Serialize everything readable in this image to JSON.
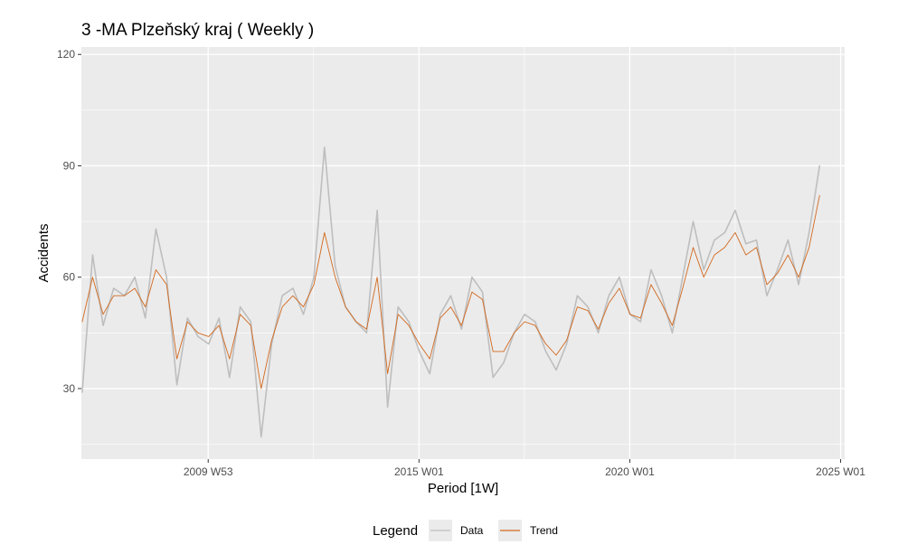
{
  "chart_data": {
    "type": "line",
    "title": "3 -MA   Plzeňský kraj ( Weekly )",
    "xlabel": "Period [1W]",
    "ylabel": "Accidents",
    "x_ticks": [
      {
        "label": "2009 W53",
        "date": "2009-12-28"
      },
      {
        "label": "2015 W01",
        "date": "2014-12-29"
      },
      {
        "label": "2020 W01",
        "date": "2019-12-30"
      },
      {
        "label": "2025 W01",
        "date": "2024-12-30"
      }
    ],
    "y_ticks": [
      30,
      60,
      90,
      120
    ],
    "xlim": [
      "2006-12-25",
      "2025-02-03"
    ],
    "ylim": [
      11,
      122
    ],
    "grid": true,
    "legend": {
      "title": "Legend",
      "position": "bottom",
      "entries": [
        {
          "name": "Data",
          "color": "#bebebe"
        },
        {
          "name": "Trend",
          "color": "#d2691e"
        }
      ]
    },
    "series": [
      {
        "name": "Data",
        "color": "#bebebe",
        "x": [
          "2007-01",
          "2007-04",
          "2007-07",
          "2007-10",
          "2008-01",
          "2008-04",
          "2008-07",
          "2008-10",
          "2009-01",
          "2009-04",
          "2009-07",
          "2009-10",
          "2010-01",
          "2010-04",
          "2010-07",
          "2010-10",
          "2011-01",
          "2011-04",
          "2011-07",
          "2011-10",
          "2012-01",
          "2012-04",
          "2012-07",
          "2012-10",
          "2013-01",
          "2013-04",
          "2013-07",
          "2013-10",
          "2014-01",
          "2014-04",
          "2014-07",
          "2014-10",
          "2015-01",
          "2015-04",
          "2015-07",
          "2015-10",
          "2016-01",
          "2016-04",
          "2016-07",
          "2016-10",
          "2017-01",
          "2017-04",
          "2017-07",
          "2017-10",
          "2018-01",
          "2018-04",
          "2018-07",
          "2018-10",
          "2019-01",
          "2019-04",
          "2019-07",
          "2019-10",
          "2020-01",
          "2020-04",
          "2020-07",
          "2020-10",
          "2021-01",
          "2021-04",
          "2021-07",
          "2021-10",
          "2022-01",
          "2022-04",
          "2022-07",
          "2022-10",
          "2023-01",
          "2023-04",
          "2023-07",
          "2023-10",
          "2024-01",
          "2024-04",
          "2024-07"
        ],
        "y": [
          29,
          66,
          47,
          57,
          55,
          60,
          49,
          73,
          60,
          31,
          49,
          44,
          42,
          49,
          33,
          52,
          48,
          17,
          42,
          55,
          57,
          50,
          60,
          95,
          63,
          52,
          48,
          45,
          78,
          25,
          52,
          48,
          40,
          34,
          50,
          55,
          46,
          60,
          56,
          33,
          37,
          45,
          50,
          48,
          40,
          35,
          42,
          55,
          52,
          45,
          55,
          60,
          50,
          48,
          62,
          55,
          45,
          60,
          75,
          62,
          70,
          72,
          78,
          69,
          70,
          55,
          62,
          70,
          58,
          72,
          90
        ]
      },
      {
        "name": "Trend",
        "color": "#d2691e",
        "x": [
          "2007-01",
          "2007-04",
          "2007-07",
          "2007-10",
          "2008-01",
          "2008-04",
          "2008-07",
          "2008-10",
          "2009-01",
          "2009-04",
          "2009-07",
          "2009-10",
          "2010-01",
          "2010-04",
          "2010-07",
          "2010-10",
          "2011-01",
          "2011-04",
          "2011-07",
          "2011-10",
          "2012-01",
          "2012-04",
          "2012-07",
          "2012-10",
          "2013-01",
          "2013-04",
          "2013-07",
          "2013-10",
          "2014-01",
          "2014-04",
          "2014-07",
          "2014-10",
          "2015-01",
          "2015-04",
          "2015-07",
          "2015-10",
          "2016-01",
          "2016-04",
          "2016-07",
          "2016-10",
          "2017-01",
          "2017-04",
          "2017-07",
          "2017-10",
          "2018-01",
          "2018-04",
          "2018-07",
          "2018-10",
          "2019-01",
          "2019-04",
          "2019-07",
          "2019-10",
          "2020-01",
          "2020-04",
          "2020-07",
          "2020-10",
          "2021-01",
          "2021-04",
          "2021-07",
          "2021-10",
          "2022-01",
          "2022-04",
          "2022-07",
          "2022-10",
          "2023-01",
          "2023-04",
          "2023-07",
          "2023-10",
          "2024-01",
          "2024-04",
          "2024-07"
        ],
        "y": [
          48,
          60,
          50,
          55,
          55,
          57,
          52,
          62,
          58,
          38,
          48,
          45,
          44,
          47,
          38,
          50,
          47,
          30,
          43,
          52,
          55,
          52,
          58,
          72,
          60,
          52,
          48,
          46,
          60,
          34,
          50,
          47,
          42,
          38,
          49,
          52,
          47,
          56,
          54,
          40,
          40,
          45,
          48,
          47,
          42,
          39,
          43,
          52,
          51,
          46,
          53,
          57,
          50,
          49,
          58,
          53,
          47,
          57,
          68,
          60,
          66,
          68,
          72,
          66,
          68,
          58,
          61,
          66,
          60,
          68,
          82
        ]
      }
    ]
  }
}
